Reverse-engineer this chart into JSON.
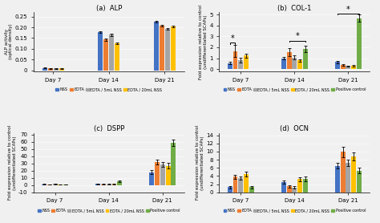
{
  "panels": [
    "(a)  ALP",
    "(b)  COL-1",
    "(c)  DSPP",
    "(d)  OCN"
  ],
  "groups": [
    "Day 7",
    "Day 14",
    "Day 21"
  ],
  "colors": [
    "#4472C4",
    "#ED7D31",
    "#A5A5A5",
    "#FFC000",
    "#70AD47"
  ],
  "legend_labels": [
    "NSS",
    "EDTA",
    "EDTA / 5mL NSS",
    "EDTA / 20mL NSS",
    "Positive control"
  ],
  "alp": {
    "ylabel": "ALP activity\n(optical density)",
    "ylim": [
      -0.005,
      0.27
    ],
    "yticks": [
      0.0,
      0.05,
      0.1,
      0.15,
      0.2,
      0.25
    ],
    "yticklabels": [
      "0",
      "0.05",
      "0.10",
      "0.15",
      "0.20",
      "0.25"
    ],
    "data": [
      [
        0.01,
        0.009,
        0.008,
        0.008
      ],
      [
        0.178,
        0.143,
        0.165,
        0.127
      ],
      [
        0.228,
        0.208,
        0.193,
        0.203
      ]
    ],
    "errors": [
      [
        0.002,
        0.002,
        0.001,
        0.002
      ],
      [
        0.005,
        0.006,
        0.007,
        0.004
      ],
      [
        0.004,
        0.005,
        0.005,
        0.004
      ]
    ],
    "n_series": 4
  },
  "col1": {
    "ylabel": "Fold expression relative to control\n(undifferentiated SCAPs)",
    "ylim": [
      -0.2,
      5.2
    ],
    "yticks": [
      0,
      1,
      2,
      3,
      4,
      5
    ],
    "yticklabels": [
      "0",
      "1",
      "2",
      "3",
      "4",
      "5"
    ],
    "data": [
      [
        0.55,
        1.65,
        0.8,
        1.25,
        null
      ],
      [
        1.0,
        1.55,
        1.05,
        0.8,
        1.85
      ],
      [
        0.65,
        0.35,
        0.28,
        0.28,
        4.65
      ]
    ],
    "errors": [
      [
        0.12,
        0.55,
        0.22,
        0.18,
        null
      ],
      [
        0.12,
        0.35,
        0.18,
        0.12,
        0.28
      ],
      [
        0.1,
        0.07,
        0.06,
        0.07,
        0.32
      ]
    ],
    "n_series": 5
  },
  "dspp": {
    "ylabel": "Fold expression relative to control\n(undifferentiated SCAPs)",
    "ylim": [
      -10,
      72
    ],
    "yticks": [
      -10,
      0,
      10,
      20,
      30,
      40,
      50,
      60,
      70
    ],
    "yticklabels": [
      "-10",
      "0",
      "10",
      "20",
      "30",
      "40",
      "50",
      "60",
      "70"
    ],
    "data": [
      [
        1.2,
        1.0,
        1.5,
        1.0,
        0.8
      ],
      [
        1.8,
        1.2,
        1.2,
        1.5,
        5.5
      ],
      [
        18.0,
        32.0,
        28.5,
        27.0,
        59.0
      ]
    ],
    "errors": [
      [
        0.4,
        0.3,
        0.4,
        0.3,
        0.3
      ],
      [
        0.6,
        0.4,
        0.5,
        0.4,
        1.0
      ],
      [
        3.0,
        3.5,
        3.0,
        3.5,
        4.5
      ]
    ],
    "n_series": 5
  },
  "ocn": {
    "ylabel": "Fold expression relative to control\n(undifferentiated SCAPs)",
    "ylim": [
      0,
      14.5
    ],
    "yticks": [
      0,
      2,
      4,
      6,
      8,
      10,
      12,
      14
    ],
    "yticklabels": [
      "0",
      "2",
      "4",
      "6",
      "8",
      "10",
      "12",
      "14"
    ],
    "data": [
      [
        1.3,
        3.8,
        3.5,
        4.5,
        1.3
      ],
      [
        2.5,
        1.5,
        1.2,
        3.2,
        3.3
      ],
      [
        6.5,
        9.9,
        7.2,
        8.8,
        5.3
      ]
    ],
    "errors": [
      [
        0.3,
        0.5,
        0.4,
        0.6,
        0.3
      ],
      [
        0.4,
        0.3,
        0.3,
        0.5,
        0.5
      ],
      [
        0.7,
        1.2,
        0.8,
        1.0,
        0.7
      ]
    ],
    "n_series": 5
  },
  "background_color": "#f0f0f0"
}
